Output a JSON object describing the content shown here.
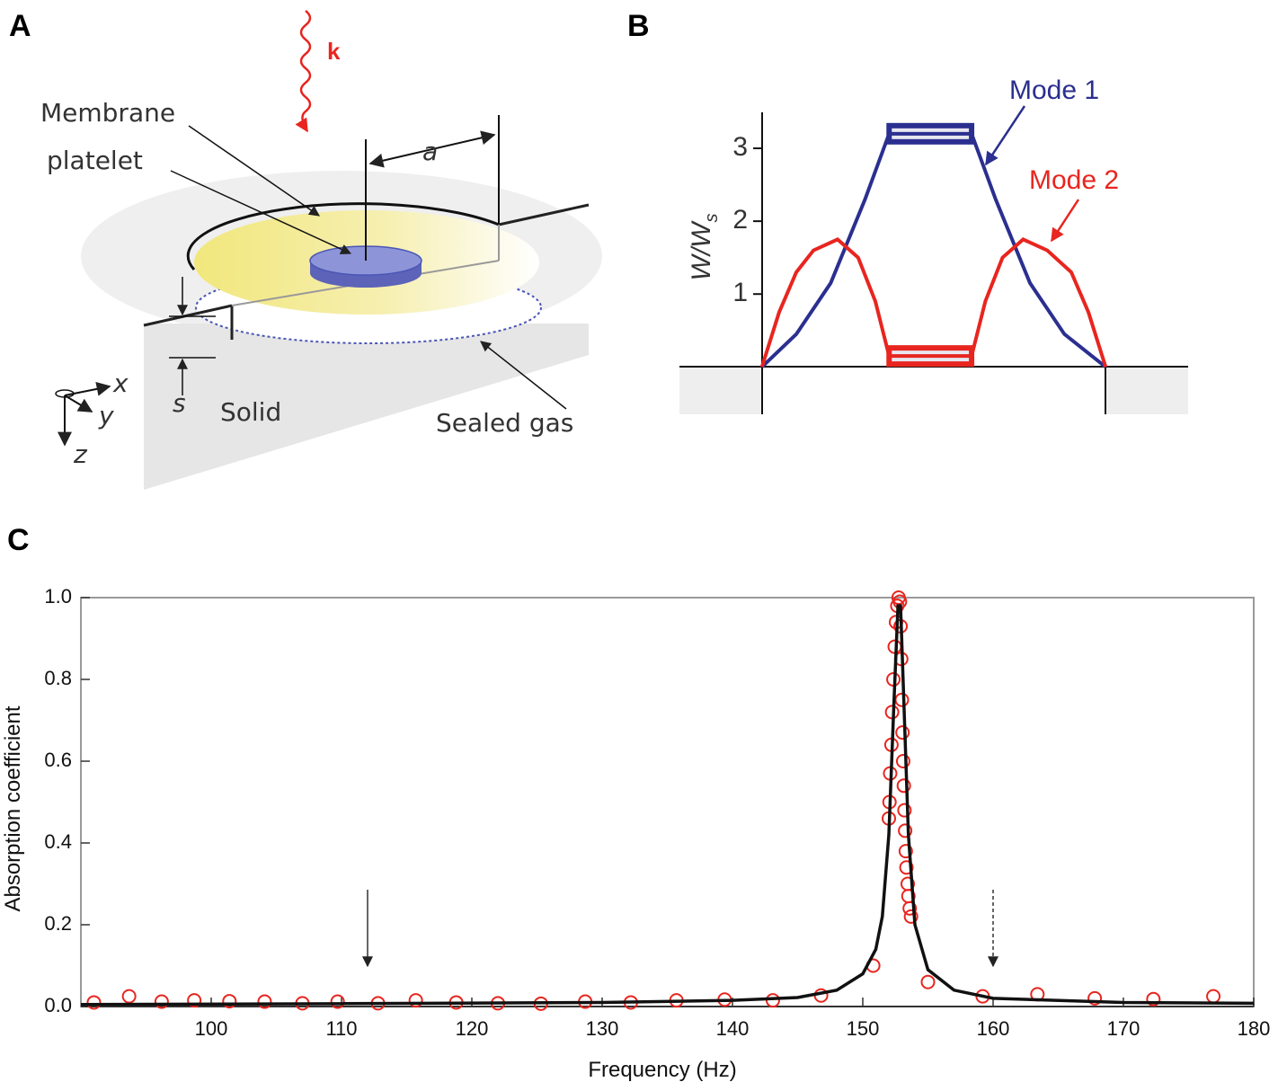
{
  "panel_labels": [
    "A",
    "B",
    "C"
  ],
  "diagram": {
    "wave_label": "k",
    "membrane": "Membrane",
    "platelet": "platelet",
    "radius": "a",
    "gap": "s",
    "solid": "Solid",
    "gas": "Sealed gas",
    "axes": [
      "x",
      "y",
      "z"
    ]
  },
  "chart_data": [
    {
      "type": "line",
      "ylabel": "W/W",
      "ylabel_sub": "s",
      "xlim": [
        -0.24,
        1.24
      ],
      "ylim": [
        -0.65,
        3.5
      ],
      "yticks": [
        1,
        2,
        3
      ],
      "series": [
        {
          "name": "Mode 1",
          "color": "#2b2f8f",
          "x": [
            0,
            0.1,
            0.2,
            0.3,
            0.37,
            0.61,
            0.68,
            0.78,
            0.88,
            1
          ],
          "values": [
            0,
            0.45,
            1.15,
            2.3,
            3.2,
            3.2,
            2.3,
            1.15,
            0.45,
            0
          ]
        },
        {
          "name": "Mode 2",
          "color": "#e8251f",
          "x": [
            0,
            0.05,
            0.1,
            0.15,
            0.22,
            0.28,
            0.33,
            0.37,
            0.61,
            0.65,
            0.7,
            0.76,
            0.83,
            0.9,
            0.95,
            1
          ],
          "values": [
            0,
            0.75,
            1.3,
            1.6,
            1.75,
            1.5,
            0.9,
            0.15,
            0.15,
            0.9,
            1.5,
            1.75,
            1.6,
            1.3,
            0.75,
            0
          ]
        }
      ]
    },
    {
      "type": "scatter",
      "xlabel": "Frequency (Hz)",
      "ylabel": "Absorption coefficient",
      "xlim": [
        90,
        180
      ],
      "ylim": [
        0,
        1
      ],
      "xticks": [
        100,
        110,
        120,
        130,
        140,
        150,
        160,
        170,
        180
      ],
      "yticks": [
        {
          "value": 0,
          "label": "0.0"
        },
        0.2,
        0.4,
        0.6,
        0.8,
        {
          "value": 1,
          "label": "1.0"
        }
      ],
      "markers": [
        {
          "x": 112,
          "style": "solid"
        },
        {
          "x": 160,
          "style": "dashed"
        }
      ],
      "series": [
        {
          "style": "circles",
          "color": "#e8251f",
          "x": [
            91.0,
            93.7,
            96.2,
            98.7,
            101.4,
            104.1,
            107.0,
            109.7,
            112.8,
            115.7,
            118.8,
            122.0,
            125.3,
            128.7,
            132.2,
            135.7,
            139.4,
            143.1,
            146.8,
            150.8,
            152.0,
            152.05,
            152.1,
            152.2,
            152.25,
            152.35,
            152.45,
            152.55,
            152.65,
            152.75,
            152.85,
            152.9,
            152.95,
            153.0,
            153.05,
            153.1,
            153.15,
            153.2,
            153.25,
            153.3,
            153.35,
            153.45,
            153.5,
            153.6,
            153.7,
            155.0,
            159.2,
            163.4,
            167.8,
            172.3,
            176.9
          ],
          "values": [
            0.01,
            0.025,
            0.012,
            0.015,
            0.013,
            0.012,
            0.008,
            0.012,
            0.008,
            0.015,
            0.01,
            0.008,
            0.007,
            0.012,
            0.01,
            0.015,
            0.017,
            0.015,
            0.027,
            0.1,
            0.46,
            0.5,
            0.57,
            0.64,
            0.72,
            0.8,
            0.88,
            0.94,
            0.98,
            1.0,
            0.99,
            0.93,
            0.85,
            0.75,
            0.67,
            0.6,
            0.54,
            0.48,
            0.43,
            0.38,
            0.34,
            0.3,
            0.27,
            0.24,
            0.22,
            0.06,
            0.025,
            0.03,
            0.02,
            0.018,
            0.025
          ]
        },
        {
          "style": "line",
          "color": "#111111",
          "x": [
            90,
            110,
            130,
            140,
            145,
            148,
            150,
            151,
            151.5,
            152,
            152.4,
            152.7,
            152.9,
            153.2,
            153.5,
            154,
            155,
            157,
            160,
            170,
            180
          ],
          "values": [
            0.005,
            0.007,
            0.01,
            0.015,
            0.022,
            0.04,
            0.08,
            0.14,
            0.22,
            0.42,
            0.75,
            0.98,
            0.98,
            0.7,
            0.42,
            0.2,
            0.09,
            0.04,
            0.02,
            0.01,
            0.008
          ]
        }
      ]
    }
  ]
}
